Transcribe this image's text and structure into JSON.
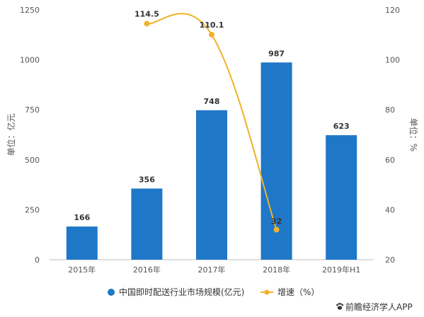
{
  "chart_data": {
    "type": "bar",
    "categories": [
      "2015年",
      "2016年",
      "2017年",
      "2018年",
      "2019年H1"
    ],
    "series": [
      {
        "name": "中国即时配送行业市场规模(亿元)",
        "type": "bar",
        "axis": "left",
        "color": "#1f77c8",
        "values": [
          166,
          356,
          748,
          987,
          623
        ]
      },
      {
        "name": "增速（%）",
        "type": "line",
        "axis": "right",
        "color": "#f0b22a",
        "values": [
          null,
          114.5,
          110.1,
          32,
          null
        ],
        "labels": [
          "",
          "114.5",
          "110.1",
          "32",
          ""
        ]
      }
    ],
    "ylabel": "单位：亿元",
    "y2label": "单位：%",
    "ylim": [
      0,
      1250
    ],
    "y2lim": [
      20,
      120
    ],
    "yticks": [
      "0",
      "250",
      "500",
      "750",
      "1000",
      "1250"
    ],
    "y2ticks": [
      "20",
      "40",
      "60",
      "80",
      "100",
      "120"
    ],
    "bar_labels": [
      "166",
      "356",
      "748",
      "987",
      "623"
    ],
    "grid": false,
    "legend_position": "bottom"
  },
  "credit": {
    "icon": "paw-icon",
    "text": "前瞻经济学人APP"
  }
}
